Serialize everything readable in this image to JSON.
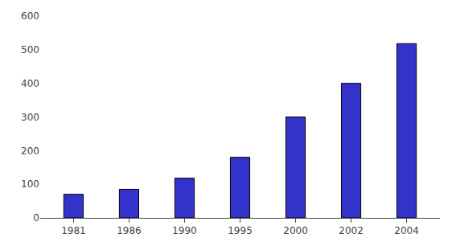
{
  "chart_data": {
    "type": "bar",
    "categories": [
      "1981",
      "1986",
      "1990",
      "1995",
      "2000",
      "2002",
      "2004"
    ],
    "values": [
      70,
      85,
      118,
      180,
      300,
      400,
      518
    ],
    "color": "#3333CC",
    "ylim": [
      0,
      600
    ],
    "yticks": [
      0,
      100,
      200,
      300,
      400,
      500,
      600
    ],
    "grid": false
  }
}
